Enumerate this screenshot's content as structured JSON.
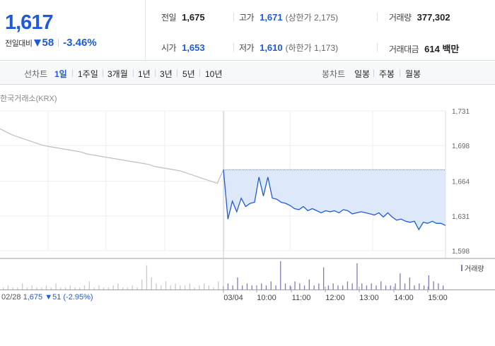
{
  "summary": {
    "current_price": "1,617",
    "change_label": "전일대비",
    "change_value": "58",
    "change_rate": "-3.46%",
    "change_direction_icon": "down-triangle-icon",
    "accent_color": "#1f5bd6",
    "stats": {
      "prev_close": {
        "label": "전일",
        "value": "1,675"
      },
      "high": {
        "label": "고가",
        "value": "1,671",
        "sub": "(상한가 2,175)"
      },
      "volume": {
        "label": "거래량",
        "value": "377,302"
      },
      "open": {
        "label": "시가",
        "value": "1,653"
      },
      "low": {
        "label": "저가",
        "value": "1,610",
        "sub": "(하한가 1,173)"
      },
      "amount": {
        "label": "거래대금",
        "value": "614 백만"
      }
    }
  },
  "tabs": {
    "line_label": "선차트",
    "line_periods": [
      "1일",
      "1주일",
      "3개월",
      "1년",
      "3년",
      "5년",
      "10년"
    ],
    "active_period": "1일",
    "candle_label": "봉차트",
    "candle_periods": [
      "일봉",
      "주봉",
      "월봉"
    ]
  },
  "chart": {
    "source": "한국거래소(KRX)",
    "volume_legend": "거래량",
    "prev_day_info": {
      "date": "02/28",
      "price": "1,675",
      "change": "▼51",
      "rate": "(-2.95%)"
    }
  },
  "chart_data": {
    "type": "line",
    "y_ticks": [
      "1,731",
      "1,698",
      "1,664",
      "1,631",
      "1,598"
    ],
    "ylim": [
      1598,
      1731
    ],
    "x_ticks": [
      "03/04",
      "10:00",
      "11:00",
      "12:00",
      "13:00",
      "14:00",
      "15:00"
    ],
    "reference_price": 1675,
    "series": [
      {
        "values": [
          1714,
          1711,
          1708,
          1706,
          1704,
          1702,
          1700,
          1698,
          1697,
          1696,
          1695,
          1694,
          1693,
          1692,
          1690,
          1689,
          1688,
          1687,
          1686,
          1685,
          1684,
          1683,
          1682,
          1681,
          1680,
          1678,
          1677,
          1676,
          1675,
          1674,
          1672,
          1670,
          1668,
          1666,
          1664,
          1662,
          1675
        ]
      },
      {
        "values": [
          1675,
          1628,
          1645,
          1635,
          1648,
          1640,
          1643,
          1644,
          1668,
          1650,
          1668,
          1648,
          1647,
          1644,
          1643,
          1641,
          1638,
          1637,
          1640,
          1636,
          1638,
          1636,
          1634,
          1636,
          1635,
          1636,
          1634,
          1637,
          1636,
          1633,
          1634,
          1635,
          1634,
          1633,
          1632,
          1634,
          1630,
          1634,
          1630,
          1627,
          1628,
          1626,
          1625,
          1626,
          1618,
          1625,
          1624,
          1626,
          1624,
          1624,
          1622
        ]
      }
    ],
    "volume": [
      1,
      2,
      1,
      1,
      3,
      1,
      2,
      1,
      1,
      2,
      1,
      3,
      1,
      1,
      2,
      1,
      1,
      2,
      4,
      1,
      2,
      1,
      1,
      2,
      3,
      1,
      1,
      2,
      1,
      5,
      12,
      6,
      3,
      2,
      4,
      2,
      3,
      2,
      2,
      3,
      1,
      2,
      3,
      2,
      1,
      4,
      2,
      3,
      2,
      6,
      2,
      3,
      2,
      2,
      3,
      2,
      4,
      2,
      14,
      3,
      2,
      4,
      3,
      2,
      5,
      2,
      3,
      11,
      2,
      3,
      2,
      2,
      4,
      3,
      13,
      3,
      2,
      3,
      2,
      4,
      2,
      2,
      3,
      8,
      3,
      6,
      2,
      3,
      2,
      7,
      4,
      3,
      2
    ],
    "grid": true,
    "legend_position": "top-right"
  }
}
